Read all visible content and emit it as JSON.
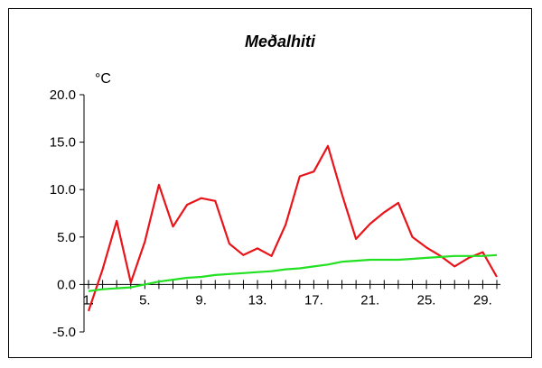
{
  "chart_data": {
    "type": "line",
    "title": "Meðalhiti",
    "ylabel": "°C",
    "xlabel": "",
    "ylim": [
      -5,
      20
    ],
    "xlim": [
      1,
      30
    ],
    "grid": false,
    "x": [
      1,
      2,
      3,
      4,
      5,
      6,
      7,
      8,
      9,
      10,
      11,
      12,
      13,
      14,
      15,
      16,
      17,
      18,
      19,
      20,
      21,
      22,
      23,
      24,
      25,
      26,
      27,
      28,
      29,
      30
    ],
    "y_ticks": [
      "-5.0",
      "0.0",
      "5.0",
      "10.0",
      "15.0",
      "20.0"
    ],
    "y_tick_values": [
      -5,
      0,
      5,
      10,
      15,
      20
    ],
    "x_ticks": [
      "1.",
      "5.",
      "9.",
      "13.",
      "17.",
      "21.",
      "25.",
      "29."
    ],
    "x_tick_values": [
      1,
      5,
      9,
      13,
      17,
      21,
      25,
      29
    ],
    "series": [
      {
        "color": "#e8141a",
        "values": [
          -2.8,
          1.6,
          6.7,
          0.2,
          4.5,
          10.5,
          6.1,
          8.4,
          9.1,
          8.8,
          4.3,
          3.1,
          3.8,
          3.0,
          6.3,
          11.4,
          11.9,
          14.6,
          9.5,
          4.8,
          6.4,
          7.6,
          8.6,
          5.0,
          3.9,
          3.0,
          1.9,
          2.8,
          3.4,
          0.8
        ]
      },
      {
        "color": "#22e022",
        "values": [
          -0.7,
          -0.5,
          -0.4,
          -0.3,
          0.0,
          0.3,
          0.5,
          0.7,
          0.8,
          1.0,
          1.1,
          1.2,
          1.3,
          1.4,
          1.6,
          1.7,
          1.9,
          2.1,
          2.4,
          2.5,
          2.6,
          2.6,
          2.6,
          2.7,
          2.8,
          2.9,
          3.0,
          3.0,
          3.0,
          3.1
        ]
      }
    ]
  }
}
